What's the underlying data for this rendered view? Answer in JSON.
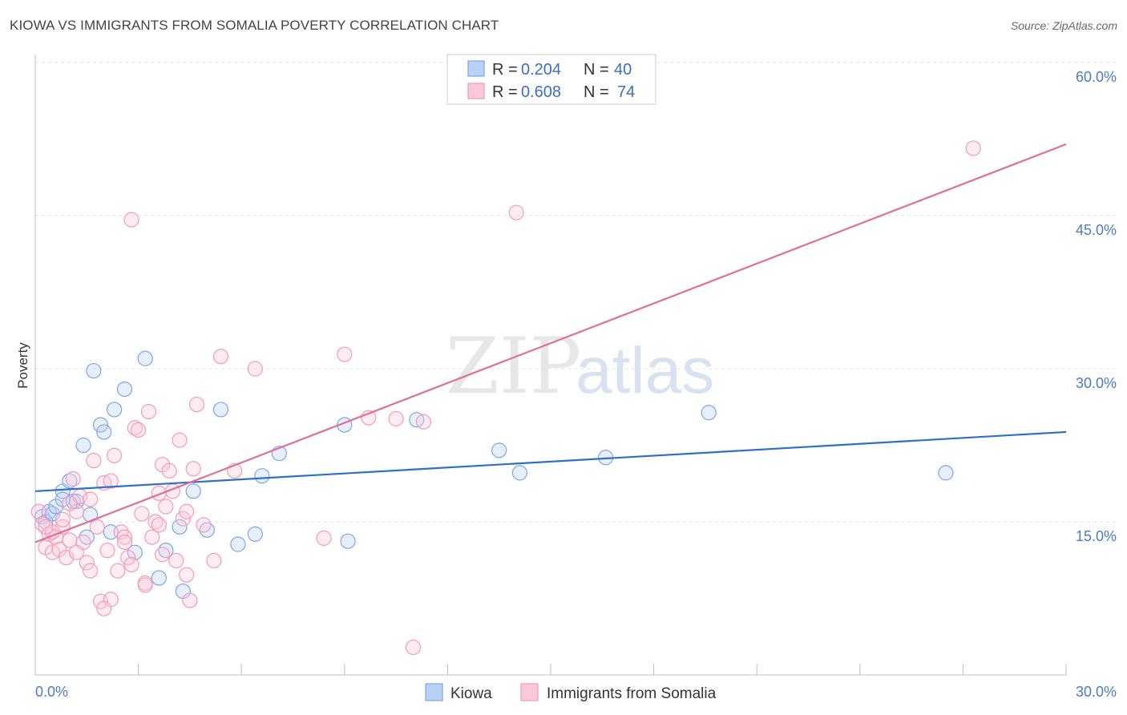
{
  "chart_data": {
    "type": "scatter",
    "title": "KIOWA VS IMMIGRANTS FROM SOMALIA POVERTY CORRELATION CHART",
    "source": "Source: ZipAtlas.com",
    "ylabel": "Poverty",
    "xlim": [
      0,
      30
    ],
    "ylim": [
      0,
      62
    ],
    "y_ticks": [
      {
        "value": 15,
        "label": "15.0%"
      },
      {
        "value": 30,
        "label": "30.0%"
      },
      {
        "value": 45,
        "label": "45.0%"
      },
      {
        "value": 60,
        "label": "60.0%"
      }
    ],
    "x_tick_labels": {
      "min": "0.0%",
      "max": "30.0%"
    },
    "watermark": {
      "zip": "ZIP",
      "atlas": "atlas"
    },
    "legend": [
      {
        "r_label": "R =",
        "r": "0.204",
        "n_label": "N =",
        "n": "40"
      },
      {
        "r_label": "R =",
        "r": "0.608",
        "n_label": "N =",
        "n": "74"
      }
    ],
    "series": [
      {
        "name": "Kiowa",
        "color": "#7aa6e8",
        "line_color": "#2f6fcc",
        "trend": {
          "x0": 0,
          "y0": 18.0,
          "x1": 30,
          "y1": 23.8
        },
        "points": [
          [
            0.2,
            15.5
          ],
          [
            0.3,
            15.0
          ],
          [
            0.4,
            16.0
          ],
          [
            0.5,
            15.8
          ],
          [
            0.6,
            16.5
          ],
          [
            0.8,
            18.0
          ],
          [
            0.8,
            17.2
          ],
          [
            1.0,
            19.0
          ],
          [
            1.1,
            17.0
          ],
          [
            1.2,
            17.0
          ],
          [
            1.4,
            22.5
          ],
          [
            1.5,
            13.5
          ],
          [
            1.6,
            15.7
          ],
          [
            1.7,
            29.8
          ],
          [
            1.9,
            24.5
          ],
          [
            2.0,
            23.8
          ],
          [
            2.2,
            14.0
          ],
          [
            2.3,
            26.0
          ],
          [
            2.6,
            28.0
          ],
          [
            2.9,
            12.0
          ],
          [
            3.2,
            31.0
          ],
          [
            3.6,
            9.5
          ],
          [
            3.8,
            12.2
          ],
          [
            4.2,
            14.5
          ],
          [
            4.3,
            8.2
          ],
          [
            4.6,
            18.0
          ],
          [
            5.0,
            14.2
          ],
          [
            5.4,
            26.0
          ],
          [
            5.9,
            12.8
          ],
          [
            6.4,
            13.8
          ],
          [
            6.6,
            19.5
          ],
          [
            7.1,
            21.7
          ],
          [
            9.0,
            24.5
          ],
          [
            9.1,
            13.1
          ],
          [
            11.1,
            25.0
          ],
          [
            13.5,
            22.0
          ],
          [
            14.1,
            19.8
          ],
          [
            16.6,
            21.3
          ],
          [
            19.6,
            25.7
          ],
          [
            26.5,
            19.8
          ]
        ]
      },
      {
        "name": "Immigrants from Somalia",
        "color": "#f49ab8",
        "line_color": "#e06e98",
        "trend": {
          "x0": 0,
          "y0": 13.0,
          "x1": 30,
          "y1": 52.0
        },
        "points": [
          [
            0.1,
            16.0
          ],
          [
            0.2,
            14.8
          ],
          [
            0.3,
            12.5
          ],
          [
            0.4,
            13.8
          ],
          [
            0.5,
            12.0
          ],
          [
            0.6,
            13.5
          ],
          [
            0.7,
            12.3
          ],
          [
            0.8,
            14.5
          ],
          [
            0.9,
            11.5
          ],
          [
            1.0,
            13.2
          ],
          [
            1.1,
            19.2
          ],
          [
            1.2,
            16.0
          ],
          [
            1.3,
            17.5
          ],
          [
            1.4,
            13.0
          ],
          [
            1.5,
            11.0
          ],
          [
            1.6,
            10.2
          ],
          [
            1.7,
            21.0
          ],
          [
            1.8,
            14.5
          ],
          [
            1.9,
            7.2
          ],
          [
            2.0,
            18.8
          ],
          [
            2.1,
            12.2
          ],
          [
            2.2,
            7.4
          ],
          [
            2.3,
            21.5
          ],
          [
            2.4,
            10.2
          ],
          [
            2.5,
            14.0
          ],
          [
            2.6,
            13.5
          ],
          [
            2.7,
            11.5
          ],
          [
            2.8,
            10.8
          ],
          [
            2.9,
            24.2
          ],
          [
            3.0,
            24.0
          ],
          [
            3.1,
            15.8
          ],
          [
            3.2,
            9.0
          ],
          [
            3.3,
            25.8
          ],
          [
            3.4,
            13.5
          ],
          [
            3.5,
            15.0
          ],
          [
            3.6,
            14.7
          ],
          [
            3.7,
            20.6
          ],
          [
            3.8,
            16.5
          ],
          [
            3.9,
            20.0
          ],
          [
            4.0,
            18.0
          ],
          [
            4.1,
            11.2
          ],
          [
            4.2,
            23.0
          ],
          [
            4.3,
            15.3
          ],
          [
            4.4,
            9.8
          ],
          [
            4.5,
            7.3
          ],
          [
            4.6,
            20.2
          ],
          [
            4.7,
            26.5
          ],
          [
            4.9,
            14.7
          ],
          [
            5.2,
            11.2
          ],
          [
            5.4,
            31.2
          ],
          [
            5.8,
            20.0
          ],
          [
            6.4,
            30.0
          ],
          [
            8.4,
            13.4
          ],
          [
            9.0,
            31.4
          ],
          [
            9.7,
            25.2
          ],
          [
            10.5,
            25.1
          ],
          [
            11.3,
            24.8
          ],
          [
            14.0,
            45.3
          ],
          [
            11.0,
            2.7
          ],
          [
            2.8,
            44.6
          ],
          [
            27.3,
            51.6
          ],
          [
            0.5,
            14.0
          ],
          [
            1.6,
            17.2
          ],
          [
            2.0,
            6.5
          ],
          [
            3.6,
            17.8
          ],
          [
            1.0,
            16.8
          ],
          [
            2.6,
            13.0
          ],
          [
            0.3,
            14.5
          ],
          [
            3.2,
            8.8
          ],
          [
            4.4,
            16.0
          ],
          [
            1.2,
            12.0
          ],
          [
            2.2,
            19.0
          ],
          [
            3.7,
            11.8
          ],
          [
            0.8,
            15.2
          ]
        ]
      }
    ]
  }
}
